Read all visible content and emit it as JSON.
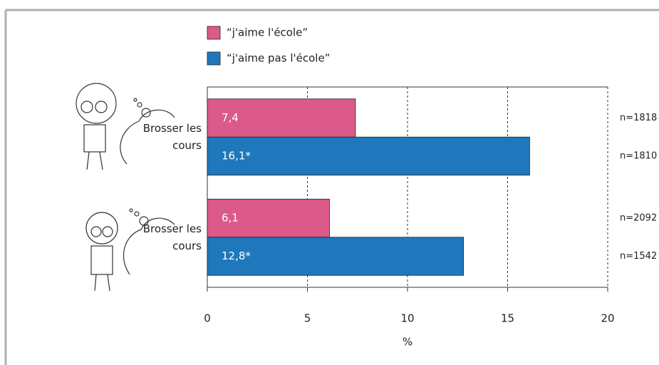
{
  "chart_data": {
    "type": "bar",
    "orientation": "horizontal",
    "categories": [
      "Brosser les cours",
      "Brosser les cours"
    ],
    "series": [
      {
        "name": "“j'aime l'école”",
        "color": "#db5a8a",
        "values": [
          7.4,
          6.1
        ],
        "value_labels": [
          "7,4",
          "6,1"
        ],
        "n_labels": [
          "n=1818",
          "n=2092"
        ]
      },
      {
        "name": "“j'aime pas l'école”",
        "color": "#1f78bb",
        "values": [
          16.1,
          12.8
        ],
        "value_labels": [
          "16,1*",
          "12,8*"
        ],
        "n_labels": [
          "n=1810",
          "n=1542"
        ]
      }
    ],
    "xlim": [
      0,
      20
    ],
    "xticks": [
      0,
      5,
      10,
      15,
      20
    ],
    "xlabel": "%",
    "grid": true
  }
}
